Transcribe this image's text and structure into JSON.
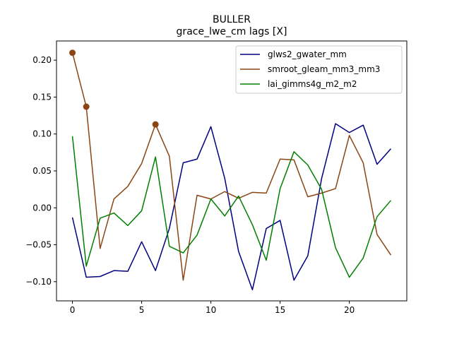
{
  "chart_data": {
    "type": "line",
    "title": "BULLER",
    "subtitle": "grace_lwe_cm lags [X]",
    "xlabel": "",
    "ylabel": "",
    "xlim": [
      -1.15,
      24.15
    ],
    "ylim": [
      -0.126,
      0.226
    ],
    "xticks": [
      0,
      5,
      10,
      15,
      20
    ],
    "yticks": [
      -0.1,
      -0.05,
      0.0,
      0.05,
      0.1,
      0.15,
      0.2
    ],
    "ytick_labels": [
      "−0.10",
      "−0.05",
      "0.00",
      "0.05",
      "0.10",
      "0.15",
      "0.20"
    ],
    "legend_position": "top-right",
    "grid": false,
    "x": [
      0,
      1,
      2,
      3,
      4,
      5,
      6,
      7,
      8,
      9,
      10,
      11,
      12,
      13,
      14,
      15,
      16,
      17,
      18,
      19,
      20,
      21,
      22,
      23
    ],
    "series": [
      {
        "name": "glws2_gwater_mm",
        "color": "#000080",
        "values": [
          -0.013,
          -0.094,
          -0.093,
          -0.085,
          -0.086,
          -0.046,
          -0.085,
          -0.028,
          0.061,
          0.066,
          0.11,
          0.04,
          -0.059,
          -0.111,
          -0.028,
          -0.017,
          -0.098,
          -0.065,
          0.04,
          0.114,
          0.102,
          0.112,
          0.059,
          0.08
        ]
      },
      {
        "name": "smroot_gleam_mm3_mm3",
        "color": "#8B4513",
        "values": [
          0.21,
          0.137,
          -0.055,
          0.012,
          0.029,
          0.06,
          0.113,
          0.07,
          -0.098,
          0.017,
          0.012,
          0.022,
          0.013,
          0.021,
          0.02,
          0.066,
          0.065,
          0.015,
          0.02,
          0.026,
          0.098,
          0.061,
          -0.036,
          -0.064
        ],
        "markers_at": [
          0,
          1,
          6
        ]
      },
      {
        "name": "lai_gimms4g_m2_m2",
        "color": "#008000",
        "values": [
          0.097,
          -0.079,
          -0.014,
          -0.007,
          -0.024,
          -0.004,
          0.069,
          -0.052,
          -0.061,
          -0.037,
          0.012,
          -0.011,
          0.016,
          -0.023,
          -0.071,
          0.026,
          0.076,
          0.058,
          0.025,
          -0.054,
          -0.094,
          -0.068,
          -0.012,
          0.01
        ]
      }
    ]
  }
}
